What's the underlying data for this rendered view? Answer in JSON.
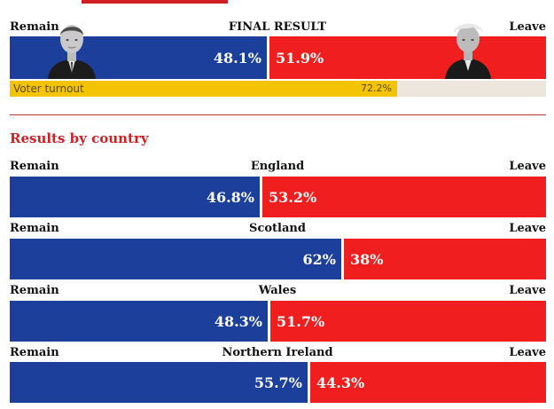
{
  "final": {
    "title": "FINAL RESULT",
    "remain_label": "Remain",
    "leave_label": "Leave",
    "remain_pct": 48.1,
    "leave_pct": 51.9,
    "remain_text": "48.1%",
    "leave_text": "51.9%",
    "turnout_label": "Voter turnout",
    "turnout_pct": 72.2,
    "turnout_text": "72.2%"
  },
  "section_title": "Results by country",
  "colors": {
    "remain": "#1b3f9b",
    "leave": "#f01e1e",
    "turnout": "#f3c300",
    "accent": "#d11f26"
  },
  "chart_data": [
    {
      "type": "bar",
      "title": "FINAL RESULT",
      "categories": [
        "Remain",
        "Leave"
      ],
      "values": [
        48.1,
        51.9
      ],
      "ylim": [
        0,
        100
      ]
    },
    {
      "type": "bar",
      "title": "Results by country",
      "categories": [
        "England",
        "Scotland",
        "Wales",
        "Northern Ireland"
      ],
      "series": [
        {
          "name": "Remain",
          "values": [
            46.8,
            62,
            48.3,
            55.7
          ]
        },
        {
          "name": "Leave",
          "values": [
            53.2,
            38,
            51.7,
            44.3
          ]
        }
      ],
      "ylim": [
        0,
        100
      ]
    }
  ],
  "countries": [
    {
      "name": "England",
      "remain_label": "Remain",
      "leave_label": "Leave",
      "remain": 46.8,
      "leave": 53.2,
      "remain_text": "46.8%",
      "leave_text": "53.2%"
    },
    {
      "name": "Scotland",
      "remain_label": "Remain",
      "leave_label": "Leave",
      "remain": 62,
      "leave": 38,
      "remain_text": "62%",
      "leave_text": "38%"
    },
    {
      "name": "Wales",
      "remain_label": "Remain",
      "leave_label": "Leave",
      "remain": 48.3,
      "leave": 51.7,
      "remain_text": "48.3%",
      "leave_text": "51.7%"
    },
    {
      "name": "Northern Ireland",
      "remain_label": "Remain",
      "leave_label": "Leave",
      "remain": 55.7,
      "leave": 44.3,
      "remain_text": "55.7%",
      "leave_text": "44.3%"
    }
  ]
}
